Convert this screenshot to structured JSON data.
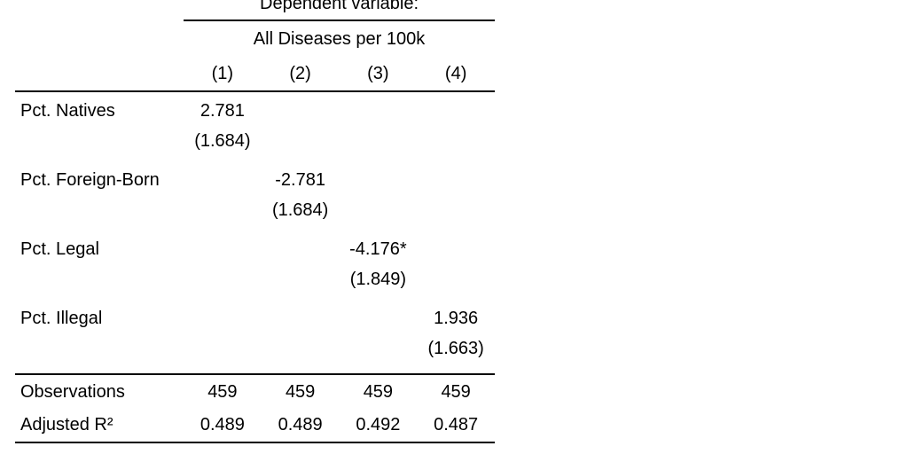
{
  "table": {
    "header": {
      "dependent_variable_label": "Dependent variable:",
      "outcome_label": "All Diseases per 100k",
      "column_numbers": [
        "(1)",
        "(2)",
        "(3)",
        "(4)"
      ]
    },
    "coefficients": [
      {
        "label": "Pct. Natives",
        "estimates": [
          "2.781",
          "",
          "",
          ""
        ],
        "std_errors": [
          "(1.684)",
          "",
          "",
          ""
        ]
      },
      {
        "label": "Pct. Foreign-Born",
        "estimates": [
          "",
          "-2.781",
          "",
          ""
        ],
        "std_errors": [
          "",
          "(1.684)",
          "",
          ""
        ]
      },
      {
        "label": "Pct. Legal",
        "estimates": [
          "",
          "",
          "-4.176*",
          ""
        ],
        "std_errors": [
          "",
          "",
          "(1.849)",
          ""
        ]
      },
      {
        "label": "Pct. Illegal",
        "estimates": [
          "",
          "",
          "",
          "1.936"
        ],
        "std_errors": [
          "",
          "",
          "",
          "(1.663)"
        ]
      }
    ],
    "summary": [
      {
        "label": "Observations",
        "values": [
          "459",
          "459",
          "459",
          "459"
        ]
      },
      {
        "label": "Adjusted R²",
        "values": [
          "0.489",
          "0.489",
          "0.492",
          "0.487"
        ]
      }
    ],
    "colors": {
      "text": "#000000",
      "rule": "#000000",
      "background": "#ffffff"
    }
  }
}
